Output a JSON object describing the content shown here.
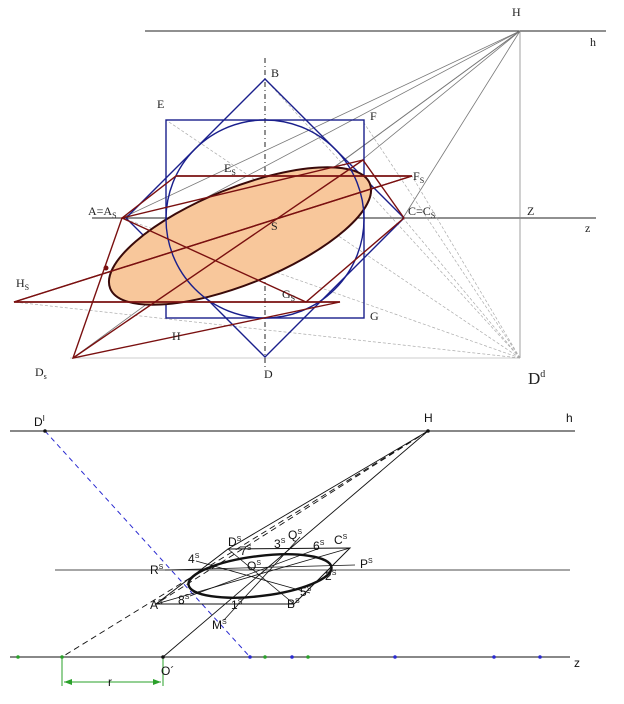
{
  "figure_top": {
    "labels": {
      "H": "H",
      "h": "h",
      "B": "B",
      "E": "E",
      "F": "F",
      "E_s_base": "E",
      "E_s_sub": "S",
      "F_s_base": "F",
      "F_s_sub": "S",
      "A_base": "A=A",
      "A_sub": "S",
      "C_base": "C=C",
      "C_sub": "S",
      "S": "S",
      "Z": "Z",
      "z": "z",
      "H_s_base": "H",
      "H_s_sub": "S",
      "G_s_base": "G",
      "G_s_sub": "S",
      "G": "G",
      "H_low": "H",
      "D_s_base": "D",
      "D_s_sub": "s",
      "D": "D",
      "D_d_base": "D",
      "D_d_sup": "d"
    },
    "colors": {
      "square": "#1a1f8c",
      "perspective": "#7a1010",
      "ellipse_fill": "#f8c79b",
      "ellipse_stroke": "#3a0a0a",
      "rays": "#777777"
    }
  },
  "figure_bottom": {
    "labels": {
      "D_base": "D",
      "D_sup": "I",
      "H": "H",
      "h": "h",
      "R": "R",
      "R_sup": "S",
      "4": "4",
      "4_sup": "S",
      "D2": "D",
      "D2_sup": "S",
      "7": "7",
      "7_sup": "S",
      "3": "3",
      "3_sup": "S",
      "Q": "Q",
      "Q_sup": "S",
      "6": "6",
      "6_sup": "S",
      "C": "C",
      "C_sup": "S",
      "O": "O",
      "O_sup": "S",
      "P": "P",
      "P_sup": "S",
      "2": "2",
      "2_sup": "S",
      "5": "5",
      "5_sup": "S",
      "A": "A",
      "A_sup": "S",
      "8": "8",
      "8_sup": "S",
      "1": "1",
      "1_sup": "S",
      "B": "B",
      "B_sup": "S",
      "M": "M",
      "M_sup": "S",
      "O_prime": "O´",
      "z": "z",
      "r": "r"
    },
    "colors": {
      "dashed_blue": "#2a2ad0",
      "accent_green": "#2aa02a",
      "line": "#111111"
    }
  }
}
